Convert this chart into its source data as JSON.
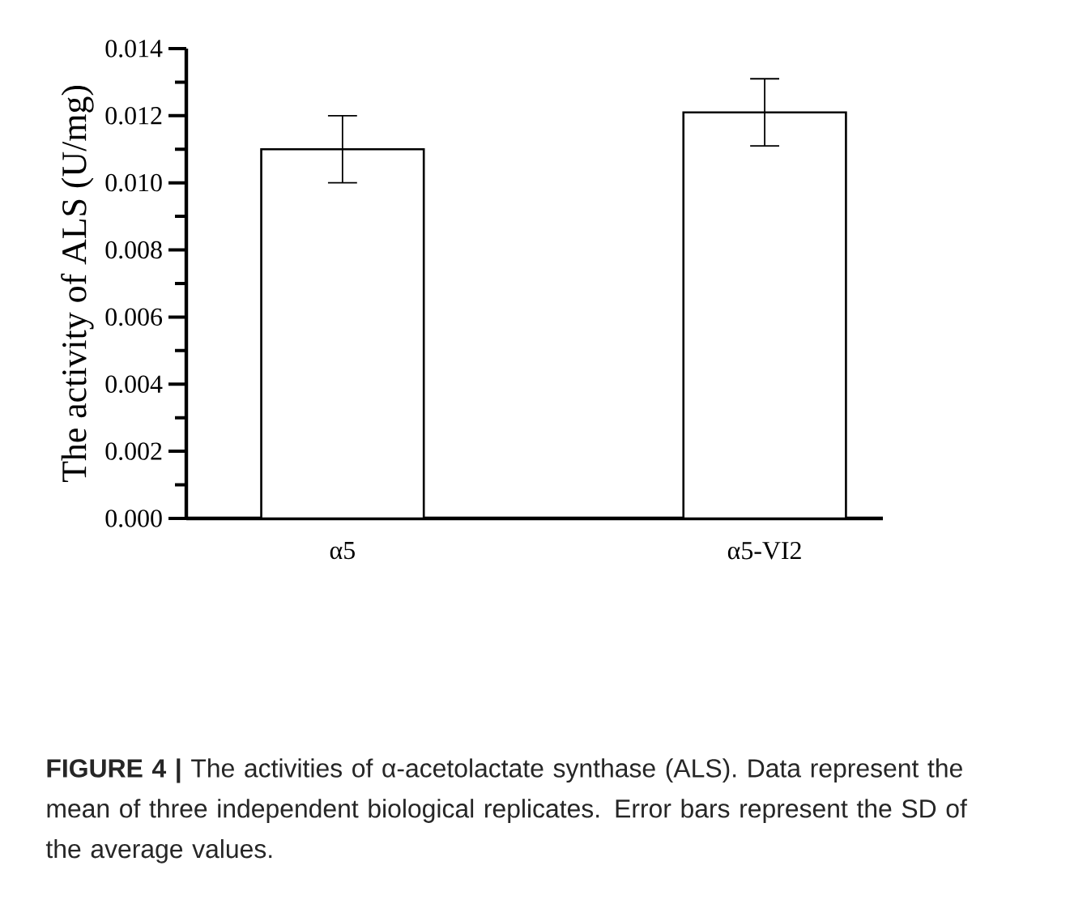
{
  "chart_data": {
    "type": "bar",
    "ylabel": "The activity of ALS  (U/mg)",
    "categories": [
      "α5",
      "α5-VI2"
    ],
    "values": [
      0.011,
      0.0121
    ],
    "errors": [
      0.001,
      0.001
    ],
    "color": "#ffffff",
    "ylim": [
      0,
      0.014
    ],
    "yticks": [
      {
        "value": 0,
        "label": "0.000"
      },
      {
        "value": 0.001,
        "label": null
      },
      {
        "value": 0.002,
        "label": "0.002"
      },
      {
        "value": 0.003,
        "label": null
      },
      {
        "value": 0.004,
        "label": "0.004"
      },
      {
        "value": 0.005,
        "label": null
      },
      {
        "value": 0.006,
        "label": "0.006"
      },
      {
        "value": 0.007,
        "label": null
      },
      {
        "value": 0.008,
        "label": "0.008"
      },
      {
        "value": 0.009,
        "label": null
      },
      {
        "value": 0.01,
        "label": "0.010"
      },
      {
        "value": 0.011,
        "label": null
      },
      {
        "value": 0.012,
        "label": "0.012"
      },
      {
        "value": 0.013,
        "label": null
      },
      {
        "value": 0.014,
        "label": "0.014"
      }
    ],
    "grid": false,
    "annotations": [
      "**FIGURE 4 |** The activities of α-acetolactate synthase (ALS). Data represent the mean of three independent biological replicates. Error bars represent the SD of the average values."
    ]
  }
}
